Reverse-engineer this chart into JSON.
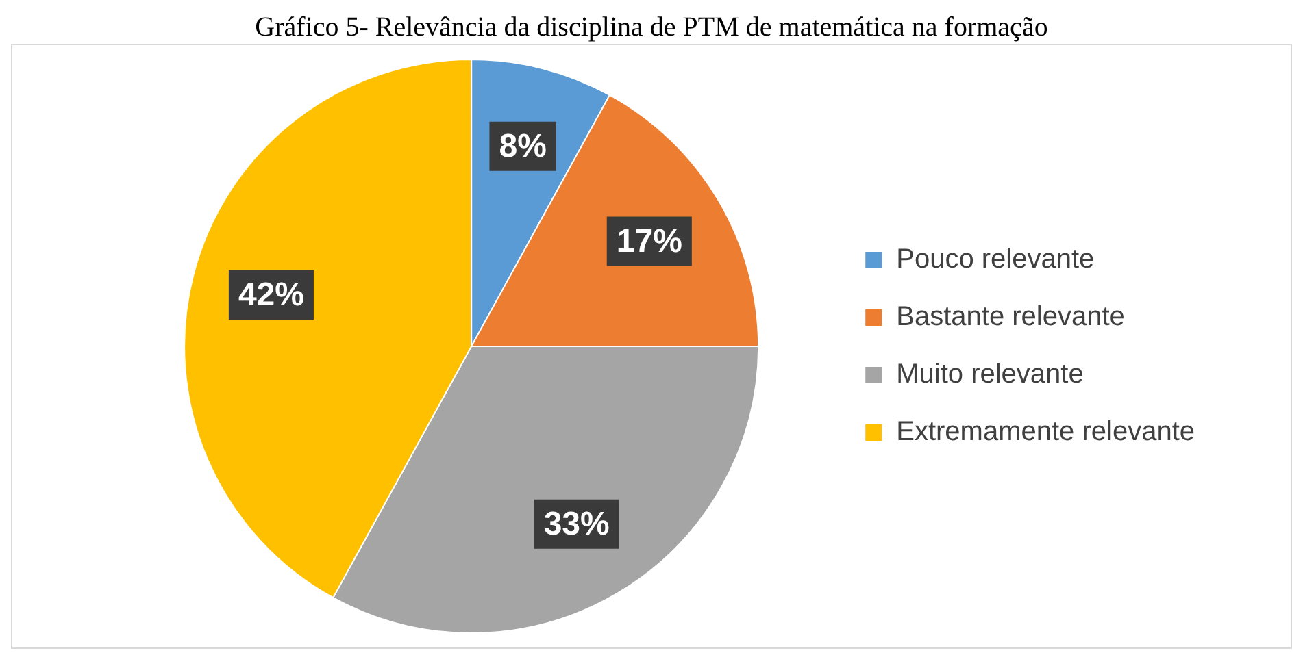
{
  "chart_data": {
    "type": "pie",
    "title": "Gráfico 5- Relevância da disciplina de PTM de matemática na formação",
    "categories": [
      "Pouco relevante",
      "Bastante relevante",
      "Muito relevante",
      "Extremamente relevante"
    ],
    "values": [
      8,
      17,
      33,
      42
    ],
    "colors": [
      "#5b9bd5",
      "#ed7d31",
      "#a5a5a5",
      "#ffc000"
    ],
    "value_labels": [
      "8%",
      "17%",
      "33%",
      "42%"
    ],
    "legend": "right"
  }
}
